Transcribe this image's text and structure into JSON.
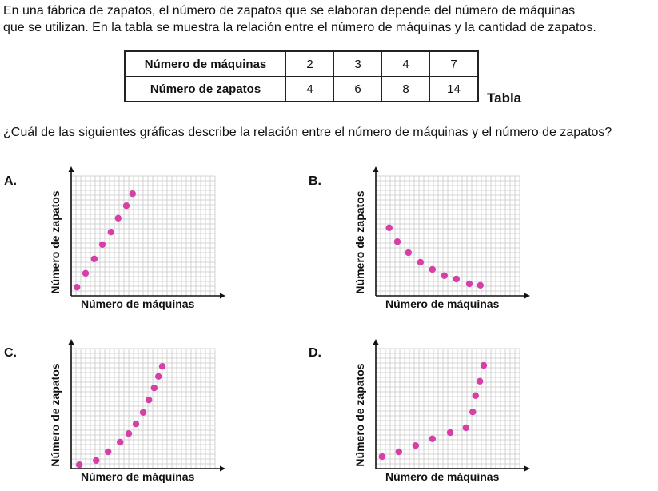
{
  "intro": [
    "En una fábrica de zapatos, el número de zapatos que se elaboran depende del número de máquinas",
    "que se utilizan. En la tabla se muestra la relación entre el número de  máquinas y la cantidad de zapatos."
  ],
  "table": {
    "caption": "Tabla",
    "rows": [
      {
        "header": "Número de máquinas",
        "values": [
          "2",
          "3",
          "4",
          "7"
        ]
      },
      {
        "header": "Número de zapatos",
        "values": [
          "4",
          "6",
          "8",
          "14"
        ]
      }
    ]
  },
  "question": "¿Cuál de las siguientes gráficas describe la relación entre el número de máquinas y el número de zapatos?",
  "point_color": "#d63fa8",
  "chart_data": [
    {
      "type": "scatter",
      "option": "A.",
      "xlabel": "Número de máquinas",
      "ylabel": "Número de zapatos",
      "grid": true,
      "xlim": [
        0,
        30
      ],
      "ylim": [
        0,
        25
      ],
      "x": [
        1.2,
        3,
        4.8,
        6.5,
        8.3,
        9.8,
        11.5,
        12.8
      ],
      "y": [
        1.8,
        4.7,
        7.7,
        10.7,
        13.3,
        16.2,
        18.8,
        21.3
      ]
    },
    {
      "type": "scatter",
      "option": "B.",
      "xlabel": "Número de máquinas",
      "ylabel": "Número de zapatos",
      "grid": true,
      "xlim": [
        0,
        30
      ],
      "ylim": [
        0,
        25
      ],
      "x": [
        2.8,
        4.5,
        6.8,
        9.3,
        11.8,
        14.3,
        16.8,
        19.5,
        21.8
      ],
      "y": [
        14.2,
        11.3,
        9,
        7,
        5.5,
        4.2,
        3.5,
        2.5,
        2.2
      ]
    },
    {
      "type": "scatter",
      "option": "C.",
      "xlabel": "Número de máquinas",
      "ylabel": "Número de zapatos",
      "grid": true,
      "xlim": [
        0,
        30
      ],
      "ylim": [
        0,
        25
      ],
      "x": [
        1.7,
        5.2,
        7.7,
        10.2,
        12,
        13.5,
        15,
        16.2,
        17.3,
        18.2,
        19
      ],
      "y": [
        0.8,
        1.7,
        3.5,
        5.5,
        7.3,
        9.3,
        11.7,
        14.3,
        16.8,
        19.2,
        21.3
      ]
    },
    {
      "type": "scatter",
      "option": "D.",
      "xlabel": "Número de máquinas",
      "ylabel": "Número de zapatos",
      "grid": true,
      "xlim": [
        0,
        30
      ],
      "ylim": [
        0,
        25
      ],
      "x": [
        1.3,
        4.8,
        8.3,
        11.8,
        15.5,
        18.8,
        20.2,
        20.8,
        21.7,
        22.5
      ],
      "y": [
        2.5,
        3.5,
        4.8,
        6.2,
        7.5,
        8.5,
        11.8,
        15.2,
        18.2,
        21.5
      ]
    }
  ]
}
